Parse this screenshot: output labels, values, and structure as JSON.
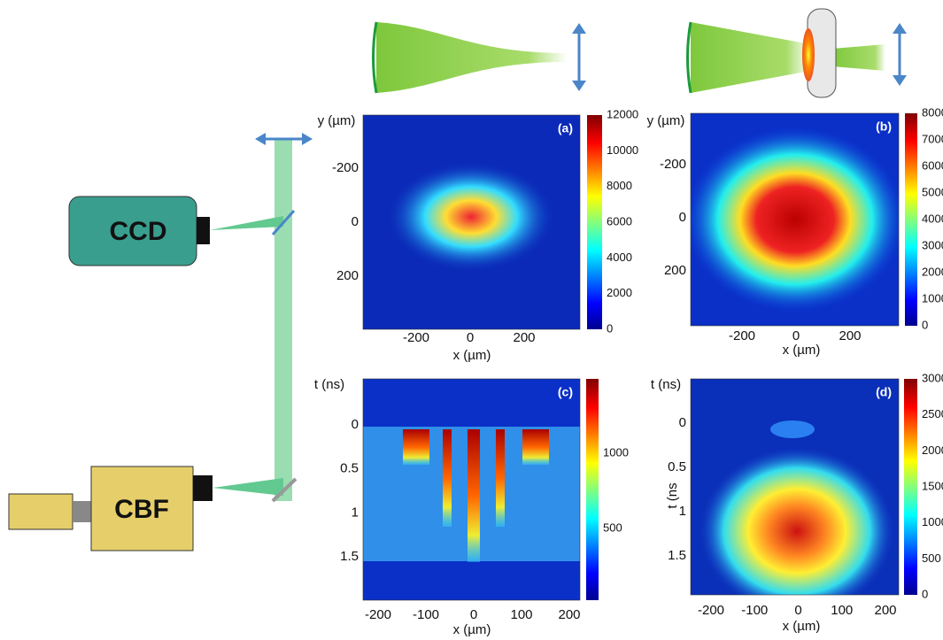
{
  "setup": {
    "ccd": "CCD",
    "cbf": "CBF"
  },
  "panels": [
    {
      "label": "(a)",
      "x_label": "x (µm)",
      "y_label": "y (µm)",
      "x_ticks": [
        -200,
        0,
        200
      ],
      "y_ticks": [
        -200,
        0,
        200
      ],
      "colorbar_ticks": [
        0,
        2000,
        4000,
        6000,
        8000,
        10000,
        12000
      ]
    },
    {
      "label": "(b)",
      "x_label": "x (µm)",
      "y_label": "y (µm)",
      "x_ticks": [
        -200,
        0,
        200
      ],
      "y_ticks": [
        -200,
        0,
        200
      ],
      "colorbar_ticks": [
        0,
        1000,
        2000,
        3000,
        4000,
        5000,
        6000,
        7000,
        8000
      ]
    },
    {
      "label": "(c)",
      "x_label": "x (µm)",
      "y_label": "t (ns)",
      "x_ticks": [
        -200,
        -100,
        0,
        100,
        200
      ],
      "y_ticks": [
        0,
        0.5,
        1,
        1.5
      ],
      "colorbar_ticks": [
        500,
        1000
      ]
    },
    {
      "label": "(d)",
      "x_label": "x (µm)",
      "y_label": "t (ns)",
      "side_label": "t (ns",
      "x_ticks": [
        -200,
        -100,
        0,
        100,
        200
      ],
      "y_ticks": [
        0,
        0.5,
        1,
        1.5
      ],
      "colorbar_ticks": [
        0,
        500,
        1000,
        1500,
        2000,
        2500,
        3000
      ]
    }
  ]
}
